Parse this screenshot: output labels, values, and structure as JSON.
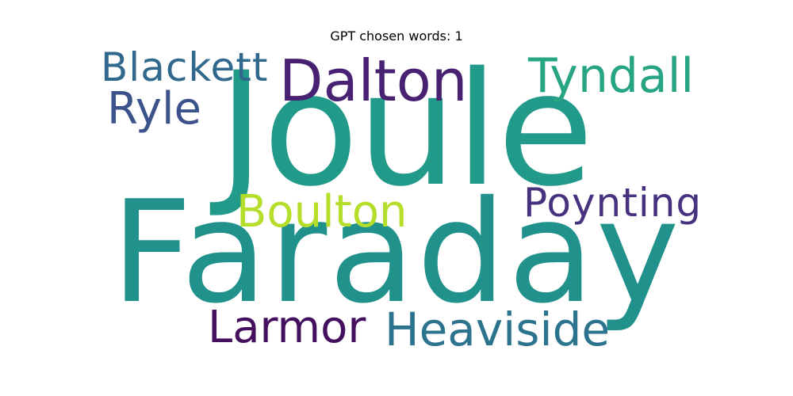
{
  "title": "GPT chosen words: 1",
  "words": {
    "faraday": {
      "text": "Faraday",
      "color": "#21918c"
    },
    "joule": {
      "text": "Joule",
      "color": "#229a8a"
    },
    "dalton": {
      "text": "Dalton",
      "color": "#482173"
    },
    "tyndall": {
      "text": "Tyndall",
      "color": "#27a582"
    },
    "blackett": {
      "text": "Blackett",
      "color": "#31688e"
    },
    "ryle": {
      "text": "Ryle",
      "color": "#3b528b"
    },
    "boulton": {
      "text": "Boulton",
      "color": "#b5de2b"
    },
    "poynting": {
      "text": "Poynting",
      "color": "#46327e"
    },
    "larmor": {
      "text": "Larmor",
      "color": "#440f5e"
    },
    "heaviside": {
      "text": "Heaviside",
      "color": "#2c738e"
    }
  }
}
